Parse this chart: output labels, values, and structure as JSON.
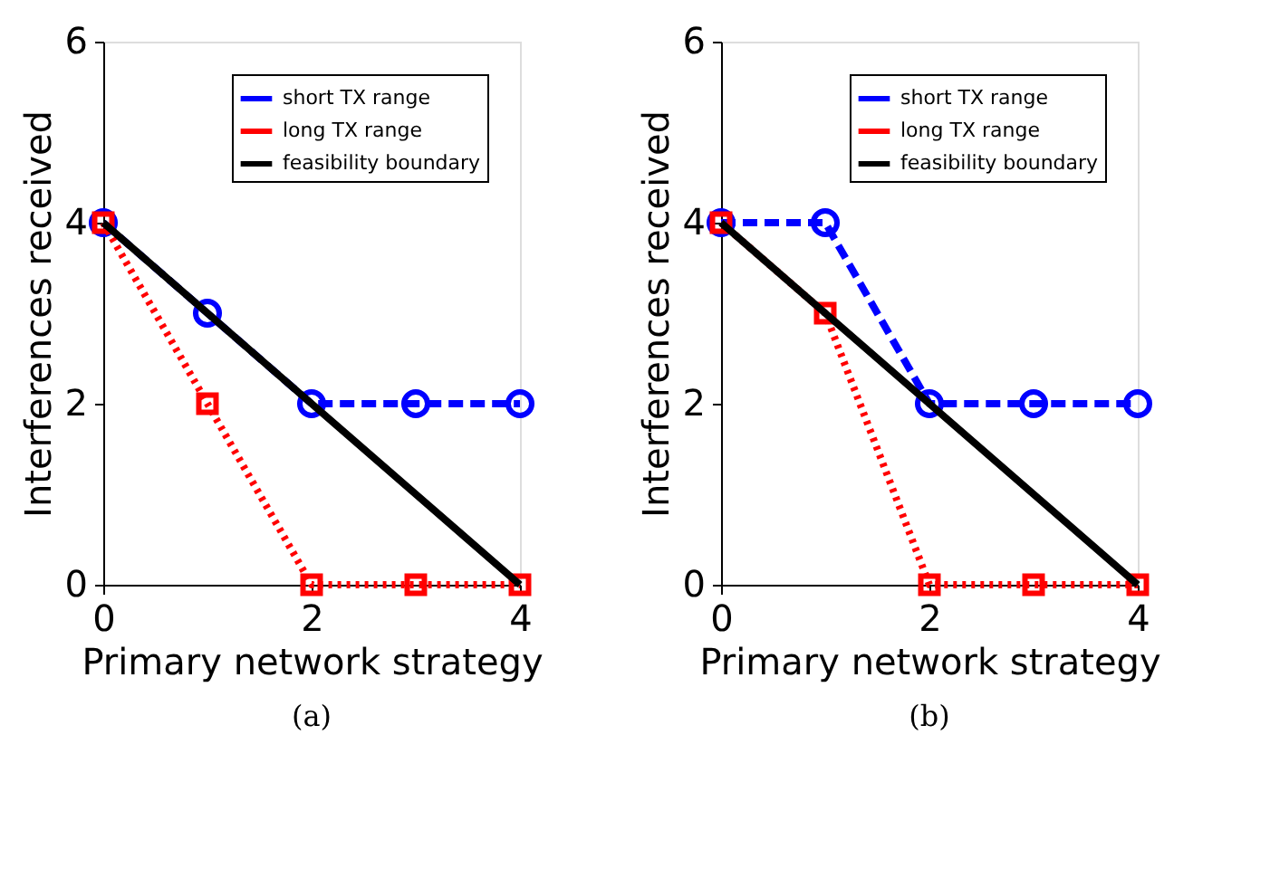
{
  "chart_data": [
    {
      "type": "line",
      "xlabel": "Primary network strategy",
      "ylabel": "Interferences received",
      "x": [
        0,
        1,
        2,
        3,
        4
      ],
      "xlim": [
        0,
        4
      ],
      "ylim": [
        0,
        6
      ],
      "xticks": [
        0,
        2,
        4
      ],
      "yticks": [
        0,
        2,
        4,
        6
      ],
      "grid": false,
      "legend": "top right",
      "annotations": [
        "(a)"
      ],
      "series": [
        {
          "name": "short TX range",
          "color": "#0000ff",
          "values": [
            4,
            3,
            2,
            2,
            2
          ],
          "marker": "circle",
          "line_style": "dashed"
        },
        {
          "name": "long TX range",
          "color": "#ff0000",
          "values": [
            4,
            2,
            0,
            0,
            0
          ],
          "marker": "square",
          "line_style": "dotted"
        },
        {
          "name": "feasibility boundary",
          "color": "#000000",
          "values": [
            4,
            3,
            2,
            1,
            0
          ],
          "marker": "none",
          "line_style": "solid"
        }
      ]
    },
    {
      "type": "line",
      "xlabel": "Primary network strategy",
      "ylabel": "Interferences received",
      "x": [
        0,
        1,
        2,
        3,
        4
      ],
      "xlim": [
        0,
        4
      ],
      "ylim": [
        0,
        6
      ],
      "xticks": [
        0,
        2,
        4
      ],
      "yticks": [
        0,
        2,
        4,
        6
      ],
      "grid": false,
      "legend": "top right",
      "annotations": [
        "(b)"
      ],
      "series": [
        {
          "name": "short TX range",
          "color": "#0000ff",
          "values": [
            4,
            4,
            2,
            2,
            2
          ],
          "marker": "circle",
          "line_style": "dashed"
        },
        {
          "name": "long TX range",
          "color": "#ff0000",
          "values": [
            4,
            3,
            0,
            0,
            0
          ],
          "marker": "square",
          "line_style": "dotted"
        },
        {
          "name": "feasibility boundary",
          "color": "#000000",
          "values": [
            4,
            3,
            2,
            1,
            0
          ],
          "marker": "none",
          "line_style": "solid"
        }
      ]
    }
  ]
}
